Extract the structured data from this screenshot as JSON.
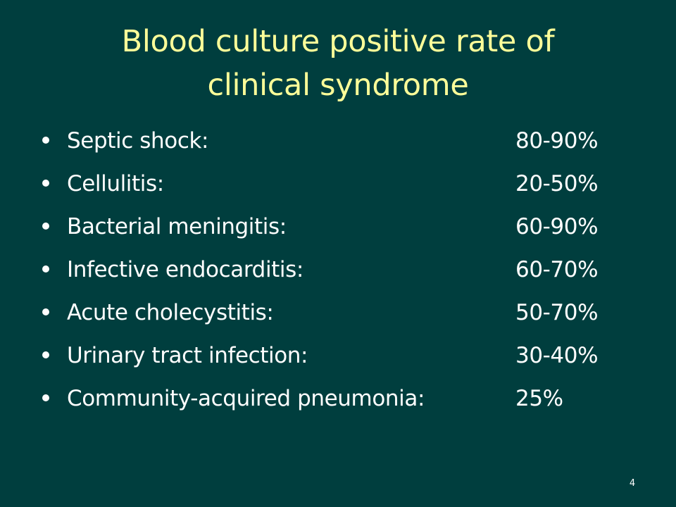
{
  "slide": {
    "title_lines": [
      "Blood culture positive rate of",
      "clinical syndrome"
    ],
    "items": [
      {
        "label": "Septic shock:",
        "value": "80-90%"
      },
      {
        "label": "Cellulitis:",
        "value": "20-50%"
      },
      {
        "label": "Bacterial meningitis:",
        "value": "60-90%"
      },
      {
        "label": "Infective endocarditis:",
        "value": "60-70%"
      },
      {
        "label": "Acute cholecystitis:",
        "value": "50-70%"
      },
      {
        "label": "Urinary tract infection:",
        "value": "30-40%"
      },
      {
        "label": "Community-acquired pneumonia:",
        "value": "25%"
      }
    ],
    "page_number": "4"
  },
  "colors": {
    "background": "#003e3e",
    "title": "#ffff99",
    "body_text": "#ffffff"
  }
}
